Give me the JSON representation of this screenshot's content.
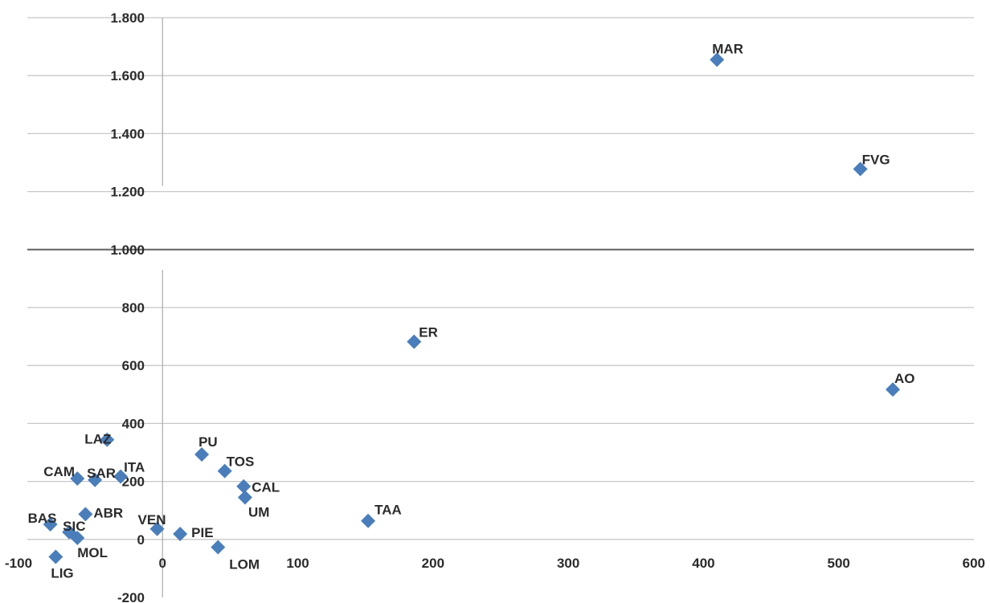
{
  "chart_data": {
    "type": "scatter",
    "title": "",
    "xlabel": "",
    "ylabel": "",
    "xlim": [
      -100,
      600
    ],
    "ylim": [
      -200,
      1800
    ],
    "x_ticks": [
      -100,
      0,
      100,
      200,
      300,
      400,
      500,
      600
    ],
    "y_ticks": [
      -200,
      0,
      200,
      400,
      600,
      800,
      1000,
      1200,
      1400,
      1600,
      1800
    ],
    "x_tick_labels": [
      "-100",
      "0",
      "100",
      "200",
      "300",
      "400",
      "500",
      "600"
    ],
    "y_tick_labels": [
      "-200",
      "0",
      "200",
      "400",
      "600",
      "800",
      "1.000",
      "1.200",
      "1.400",
      "1.600",
      "1.800"
    ],
    "reference_line_y": 1000,
    "grid": true,
    "marker_color": "#4a7ebb",
    "points": [
      {
        "label": "MAR",
        "x": 410,
        "y": 1655
      },
      {
        "label": "FVG",
        "x": 516,
        "y": 1278
      },
      {
        "label": "ER",
        "x": 186,
        "y": 682
      },
      {
        "label": "AO",
        "x": 540,
        "y": 517
      },
      {
        "label": "LAZ",
        "x": -41,
        "y": 344
      },
      {
        "label": "PU",
        "x": 29,
        "y": 293
      },
      {
        "label": "TOS",
        "x": 46,
        "y": 236
      },
      {
        "label": "ITA",
        "x": -31,
        "y": 217
      },
      {
        "label": "CAM",
        "x": -63,
        "y": 210
      },
      {
        "label": "SAR",
        "x": -50,
        "y": 205
      },
      {
        "label": "CAL",
        "x": 60,
        "y": 183
      },
      {
        "label": "UM",
        "x": 61,
        "y": 145
      },
      {
        "label": "ABR",
        "x": -57,
        "y": 87
      },
      {
        "label": "TAA",
        "x": 152,
        "y": 64
      },
      {
        "label": "BAS",
        "x": -83,
        "y": 52
      },
      {
        "label": "VEN",
        "x": -4,
        "y": 36
      },
      {
        "label": "SIC",
        "x": -69,
        "y": 25
      },
      {
        "label": "PIE",
        "x": 13,
        "y": 19
      },
      {
        "label": "MOL",
        "x": -63,
        "y": 5
      },
      {
        "label": "LOM",
        "x": 41,
        "y": -27
      },
      {
        "label": "LIG",
        "x": -79,
        "y": -60
      }
    ]
  }
}
